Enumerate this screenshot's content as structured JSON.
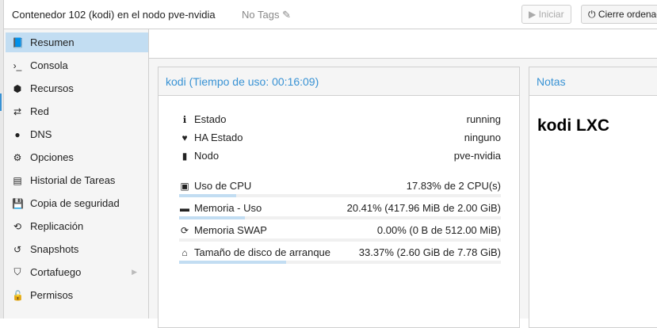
{
  "header": {
    "title": "Contenedor 102 (kodi) en el nodo pve-nvidia",
    "tags": "No Tags",
    "start_label": "Iniciar",
    "shutdown_label": "Cierre ordenado"
  },
  "sidebar": {
    "items": [
      {
        "label": "Resumen",
        "icon": "book-icon",
        "selected": true
      },
      {
        "label": "Consola",
        "icon": "terminal-icon"
      },
      {
        "label": "Recursos",
        "icon": "cube-icon"
      },
      {
        "label": "Red",
        "icon": "exchange-icon"
      },
      {
        "label": "DNS",
        "icon": "globe-icon"
      },
      {
        "label": "Opciones",
        "icon": "gear-icon"
      },
      {
        "label": "Historial de Tareas",
        "icon": "list-icon"
      },
      {
        "label": "Copia de seguridad",
        "icon": "floppy-icon"
      },
      {
        "label": "Replicación",
        "icon": "retweet-icon"
      },
      {
        "label": "Snapshots",
        "icon": "history-icon"
      },
      {
        "label": "Cortafuego",
        "icon": "shield-icon",
        "expandable": true
      },
      {
        "label": "Permisos",
        "icon": "unlock-icon"
      }
    ]
  },
  "status_panel": {
    "title": "kodi (Tiempo de uso: 00:16:09)",
    "info": [
      {
        "label": "Estado",
        "value": "running"
      },
      {
        "label": "HA Estado",
        "value": "ninguno"
      },
      {
        "label": "Nodo",
        "value": "pve-nvidia"
      }
    ],
    "usage": [
      {
        "label": "Uso de CPU",
        "value": "17.83% de 2 CPU(s)",
        "percent": 17.83
      },
      {
        "label": "Memoria - Uso",
        "value": "20.41% (417.96 MiB de 2.00 GiB)",
        "percent": 20.41
      },
      {
        "label": "Memoria SWAP",
        "value": "0.00% (0 B de 512.00 MiB)",
        "percent": 0
      },
      {
        "label": "Tamaño de disco de arranque",
        "value": "33.37% (2.60 GiB de 7.78 GiB)",
        "percent": 33.37
      }
    ]
  },
  "notes_panel": {
    "title": "Notas",
    "content": "kodi LXC"
  },
  "colors": {
    "accent": "#3892d4",
    "selected": "#c2ddf2"
  }
}
